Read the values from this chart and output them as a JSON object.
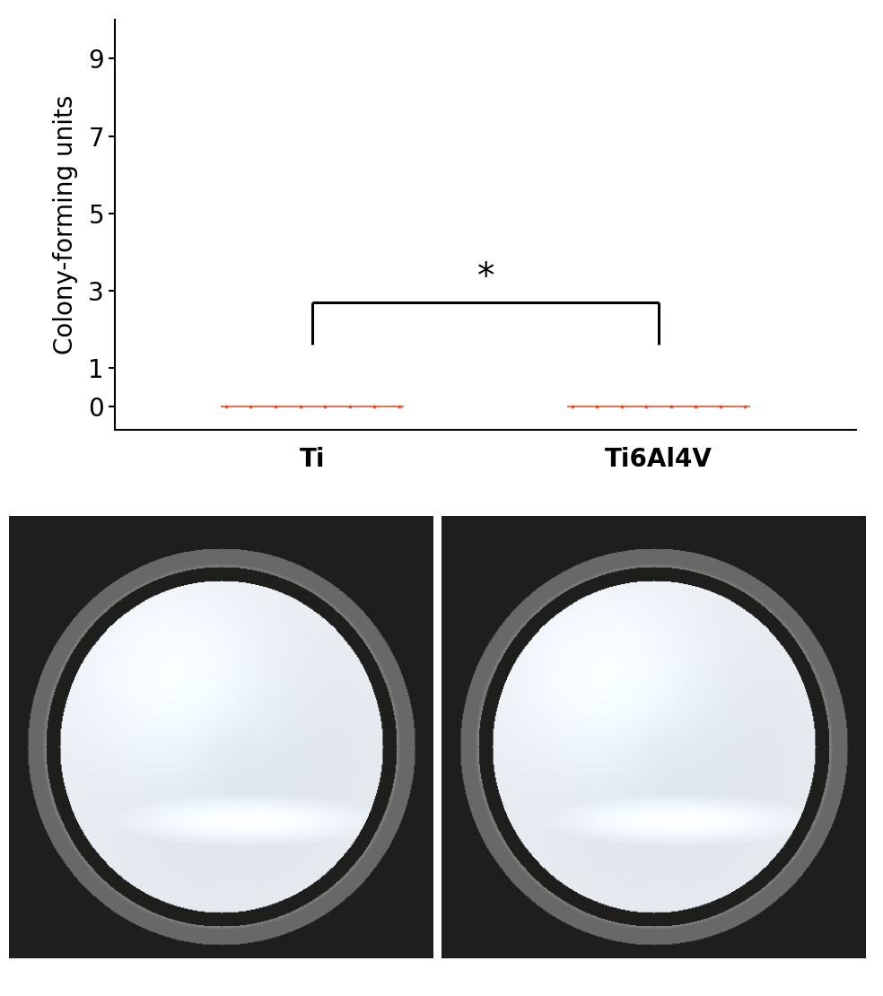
{
  "ylabel": "Colony-forming units",
  "yticks": [
    0,
    1,
    3,
    5,
    7,
    9
  ],
  "ylim": [
    -0.6,
    10
  ],
  "xlim": [
    0,
    3
  ],
  "group1_label": "Ti",
  "group2_label": "Ti6Al4V",
  "group1_x_center": 0.8,
  "group2_x_center": 2.2,
  "group1_x": [
    0.45,
    0.55,
    0.65,
    0.75,
    0.85,
    0.95,
    1.05,
    1.15
  ],
  "group1_y": [
    0,
    0,
    0,
    0,
    0,
    0,
    0,
    0
  ],
  "group2_x": [
    1.85,
    1.95,
    2.05,
    2.15,
    2.25,
    2.35,
    2.45,
    2.55
  ],
  "group2_y": [
    0,
    0,
    0,
    0,
    0,
    0,
    0,
    0
  ],
  "data_color": "#e05530",
  "bracket_y": 2.7,
  "bracket_tip_y": 1.6,
  "bracket_x1": 0.8,
  "bracket_x2": 2.2,
  "star_text": "*",
  "star_y": 2.9,
  "background_color": "#ffffff",
  "tick_label_fontsize": 20,
  "ylabel_fontsize": 20,
  "xlabel_fontsize": 20,
  "scatter_size": 8,
  "line_lw": 1.2,
  "bracket_linewidth": 2.2
}
